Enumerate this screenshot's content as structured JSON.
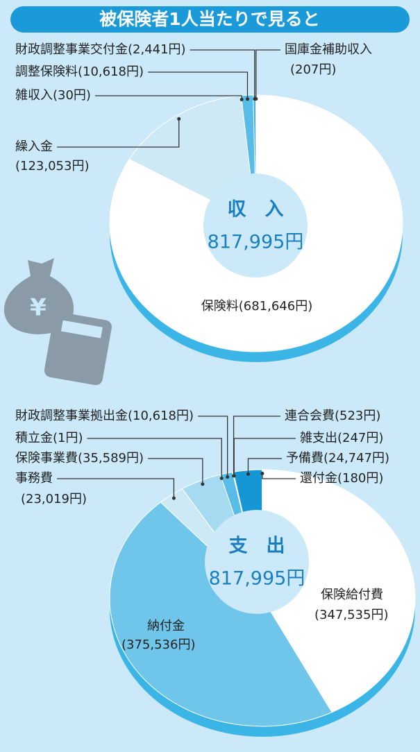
{
  "header": {
    "title": "被保険者1人当たりで見ると"
  },
  "chart_data": [
    {
      "type": "pie",
      "center_title": "収　入",
      "center_total": "817,995円",
      "categories": [
        "保険料",
        "繰入金",
        "雑収入",
        "調整保険料",
        "財政調整事業交付金",
        "国庫金補助収入"
      ],
      "values": [
        681646,
        123053,
        30,
        10618,
        2441,
        207
      ],
      "value_labels": [
        "(681,646円)",
        "(123,053円)",
        "(30円)",
        "(10,618円)",
        "(2,441円)",
        "(207円)"
      ],
      "colors": [
        "#ffffff",
        "#cde9f6",
        "#9fd6f0",
        "#58bce8",
        "#3fb0e3",
        "#1596d5"
      ]
    },
    {
      "type": "pie",
      "center_title": "支　出",
      "center_total": "817,995円",
      "categories": [
        "保険給付費",
        "納付金",
        "事務費",
        "保険事業費",
        "積立金",
        "財政調整事業拠出金",
        "連合会費",
        "雑支出",
        "予備費",
        "還付金"
      ],
      "values": [
        347535,
        375536,
        23019,
        35589,
        1,
        10618,
        523,
        247,
        24747,
        180
      ],
      "value_labels": [
        "(347,535円)",
        "(375,536円)",
        "(23,019円)",
        "(35,589円)",
        "(1円)",
        "(10,618円)",
        "(523円)",
        "(247円)",
        "(24,747円)",
        "(180円)"
      ],
      "colors": [
        "#ffffff",
        "#6fc6ea",
        "#cde9f6",
        "#a6daf1",
        "#8fd0ee",
        "#58bce8",
        "#b9e2f4",
        "#888888",
        "#1596d5",
        "#0a7fc0"
      ]
    }
  ]
}
